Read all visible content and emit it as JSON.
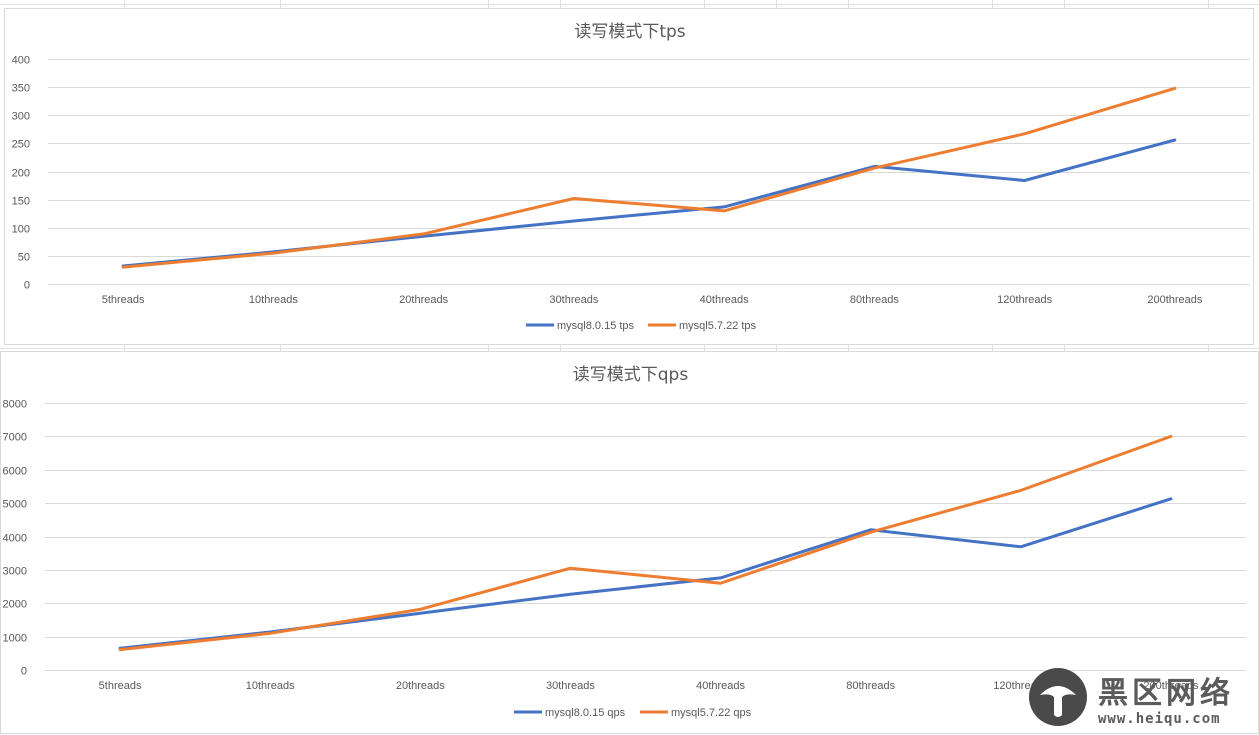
{
  "chart_data": [
    {
      "type": "line",
      "title": "读写模式下tps",
      "categories": [
        "5threads",
        "10threads",
        "20threads",
        "30threads",
        "40threads",
        "80threads",
        "120threads",
        "200threads"
      ],
      "yticks": [
        "0",
        "50",
        "100",
        "150",
        "200",
        "250",
        "300",
        "350",
        "400"
      ],
      "ylim": [
        0,
        400
      ],
      "grid": true,
      "legend_position": "bottom",
      "series": [
        {
          "name": "mysql8.0.15 tps",
          "color": "#4472c4",
          "values": [
            32,
            57,
            85,
            112,
            137,
            209,
            184,
            256
          ]
        },
        {
          "name": "mysql5.7.22 tps",
          "color": "#ed7d31",
          "values": [
            30,
            55,
            89,
            152,
            130,
            206,
            267,
            348
          ]
        }
      ]
    },
    {
      "type": "line",
      "title": "读写模式下qps",
      "categories": [
        "5threads",
        "10threads",
        "20threads",
        "30threads",
        "40threads",
        "80threads",
        "120threads",
        "200threads"
      ],
      "yticks": [
        "0",
        "1000",
        "2000",
        "3000",
        "4000",
        "5000",
        "6000",
        "7000",
        "8000"
      ],
      "ylim": [
        0,
        8000
      ],
      "grid": true,
      "legend_position": "bottom",
      "series": [
        {
          "name": "mysql8.0.15 qps",
          "color": "#4472c4",
          "values": [
            650,
            1140,
            1700,
            2270,
            2760,
            4200,
            3690,
            5130
          ]
        },
        {
          "name": "mysql5.7.22 qps",
          "color": "#ed7d31",
          "values": [
            610,
            1100,
            1820,
            3050,
            2600,
            4130,
            5380,
            7000
          ]
        }
      ]
    }
  ],
  "watermark": {
    "text": "黑区网络",
    "url": "www.heiqu.com"
  }
}
